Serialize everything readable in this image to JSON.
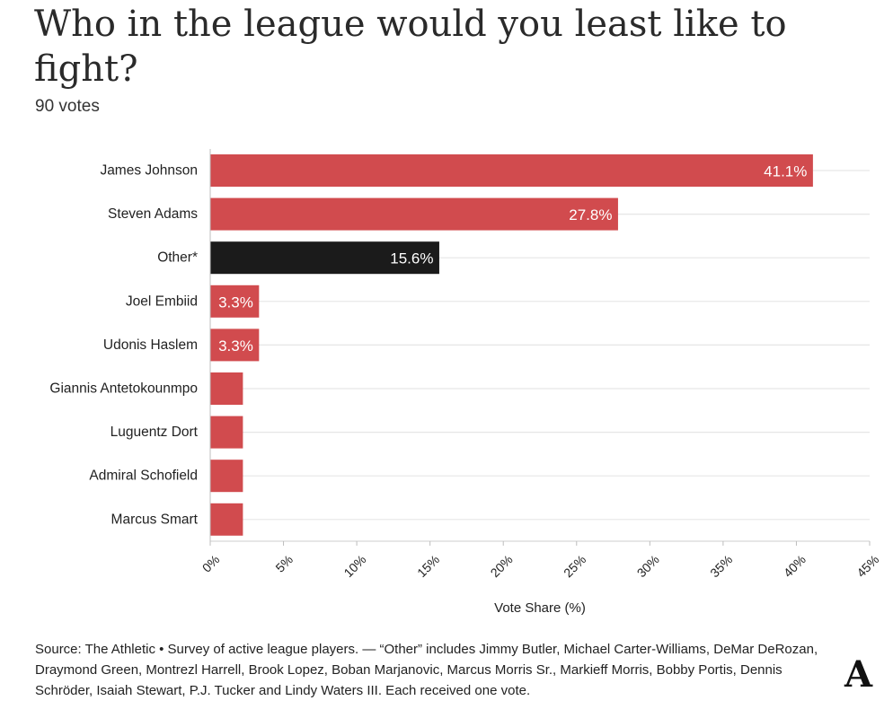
{
  "title": "Who in the league would you least like to fight?",
  "subtitle": "90 votes",
  "chart_data": {
    "type": "bar",
    "orientation": "horizontal",
    "categories": [
      "James Johnson",
      "Steven Adams",
      "Other*",
      "Joel Embiid",
      "Udonis Haslem",
      "Giannis Antetokounmpo",
      "Luguentz Dort",
      "Admiral Schofield",
      "Marcus Smart"
    ],
    "values": [
      41.1,
      27.8,
      15.6,
      3.3,
      3.3,
      2.2,
      2.2,
      2.2,
      2.2
    ],
    "data_labels": [
      "41.1%",
      "27.8%",
      "15.6%",
      "3.3%",
      "3.3%",
      "",
      "",
      "",
      ""
    ],
    "bar_colors": [
      "#d14b4e",
      "#d14b4e",
      "#1b1b1b",
      "#d14b4e",
      "#d14b4e",
      "#d14b4e",
      "#d14b4e",
      "#d14b4e",
      "#d14b4e"
    ],
    "xlabel": "Vote Share (%)",
    "xlim": [
      0,
      45
    ],
    "xticks": [
      "0%",
      "5%",
      "10%",
      "15%",
      "20%",
      "25%",
      "30%",
      "35%",
      "40%",
      "45%"
    ],
    "grid": true
  },
  "footnote": "Source: The Athletic • Survey of active league players. — “Other” includes Jimmy Butler, Michael Carter-Williams, DeMar DeRozan, Draymond Green, Montrezl Harrell, Brook Lopez, Boban Marjanovic, Marcus Morris Sr., Markieff Morris, Bobby Portis, Dennis Schröder, Isaiah Stewart, P.J. Tucker and Lindy Waters III. Each received one vote.",
  "logo_mark": "A",
  "logo_icon": "the-athletic-logo-icon"
}
